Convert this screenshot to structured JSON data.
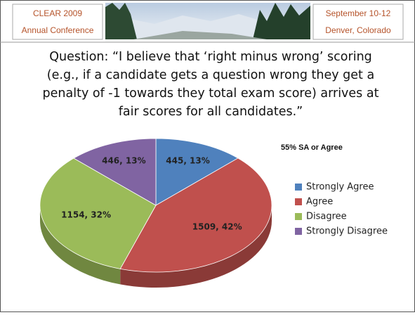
{
  "header": {
    "left": [
      "CLEAR 2009",
      "Annual Conference"
    ],
    "right": [
      "September 10-12",
      "Denver, Colorado"
    ]
  },
  "chart_data": {
    "type": "pie",
    "title": [
      "Question: “I believe that ‘right minus wrong’ scoring",
      "(e.g., if a candidate gets a question wrong they get a",
      "penalty of -1 towards they total exam score) arrives at",
      "fair scores for all candidates.”"
    ],
    "annotation": "55% SA or Agree",
    "categories": [
      "Strongly Agree",
      "Agree",
      "Disagree",
      "Strongly Disagree"
    ],
    "values": [
      445,
      1509,
      1154,
      446
    ],
    "value_labels": [
      "445, 13%",
      "1509, 42%",
      "1154, 32%",
      "446, 13%"
    ],
    "colors": [
      "#4f81bd",
      "#c0504d",
      "#9bbb59",
      "#8064a2"
    ],
    "legend": "right"
  }
}
